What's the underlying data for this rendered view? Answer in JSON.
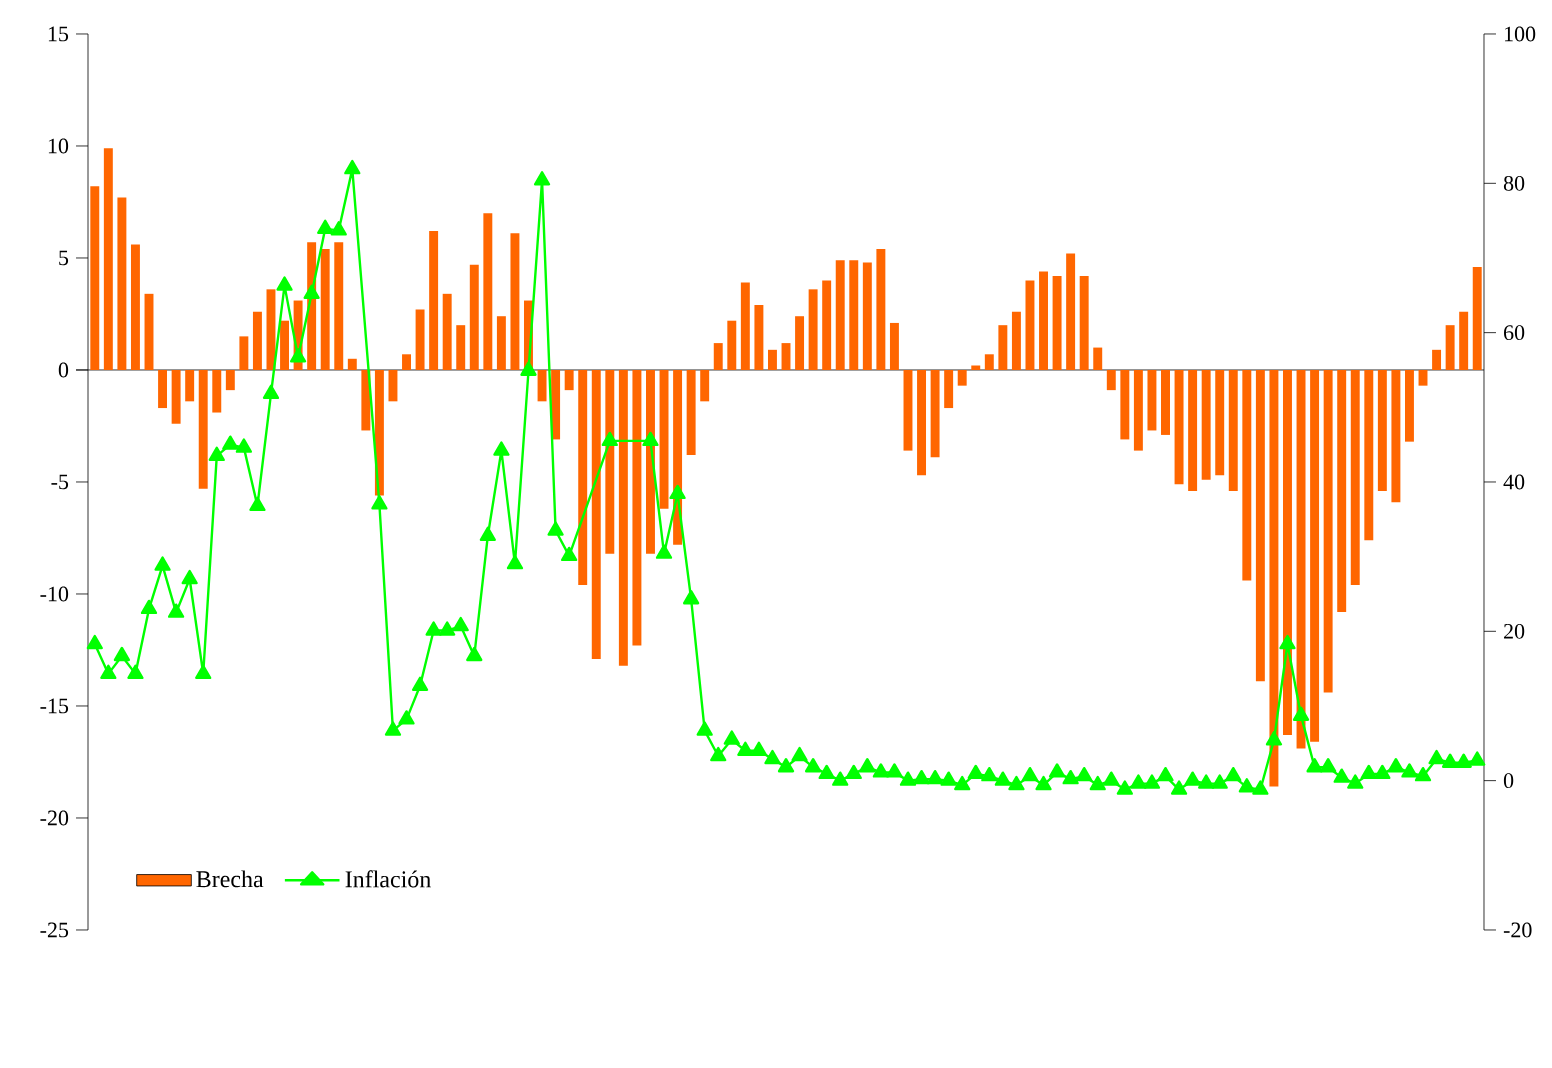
{
  "chart_data": {
    "type": "bar",
    "categories": [
      null,
      null,
      null,
      null,
      null,
      null,
      null,
      null,
      null,
      null,
      null,
      null,
      null,
      null,
      null,
      null,
      null,
      null,
      null,
      null,
      null,
      null,
      null,
      null,
      null,
      null,
      null,
      null,
      null,
      null,
      null,
      null,
      null,
      null,
      null,
      null,
      null,
      null,
      null,
      null,
      null,
      null,
      null,
      null,
      null,
      null,
      null,
      null,
      null,
      null,
      null,
      null,
      null,
      null,
      null,
      null,
      null,
      null,
      null,
      null,
      null,
      null,
      null,
      null,
      null,
      null,
      null,
      null,
      null,
      null,
      null,
      null,
      null,
      null,
      null,
      null,
      null,
      null,
      null,
      null,
      null,
      null,
      null,
      null,
      null,
      null,
      null,
      null,
      null,
      null,
      null,
      null,
      null,
      null,
      null,
      null,
      null,
      null,
      null,
      null,
      null,
      null,
      null
    ],
    "series": [
      {
        "name": "Brecha",
        "color": "#ff6600",
        "values": [
          8.2,
          9.9,
          7.7,
          5.6,
          3.4,
          -1.7,
          -2.4,
          -1.4,
          -5.3,
          -1.9,
          -0.9,
          1.5,
          2.6,
          3.6,
          2.2,
          3.1,
          5.7,
          5.4,
          5.7,
          0.5,
          -2.7,
          -5.6,
          -1.4,
          0.7,
          2.7,
          6.2,
          3.4,
          2.0,
          4.7,
          7.0,
          2.4,
          6.1,
          3.1,
          -1.4,
          -3.1,
          -0.9,
          -9.6,
          -12.9,
          -8.2,
          -13.2,
          -12.3,
          -8.2,
          -6.2,
          -7.8,
          -3.8,
          -1.4,
          1.2,
          2.2,
          3.9,
          2.9,
          0.9,
          1.2,
          2.4,
          3.6,
          4.0,
          4.9,
          4.9,
          4.8,
          5.4,
          2.1,
          -3.6,
          -4.7,
          -3.9,
          -1.7,
          -0.7,
          0.2,
          0.7,
          2.0,
          2.6,
          4.0,
          4.4,
          4.2,
          5.2,
          4.2,
          1.0,
          -0.9,
          -3.1,
          -3.6,
          -2.7,
          -2.9,
          -5.1,
          -5.4,
          -4.9,
          -4.7,
          -5.4,
          -9.4,
          -13.9,
          -18.6,
          -16.3,
          -16.9,
          -16.6,
          -14.4,
          -10.8,
          -9.6,
          -7.6,
          -5.4,
          -5.9,
          -3.2,
          -0.7,
          0.9,
          2.0,
          2.6,
          4.6
        ]
      },
      {
        "name": "Inflación",
        "type": "line",
        "axis": "y2",
        "color": "#00ff00",
        "marker": "triangle",
        "values": [
          18.3,
          14.3,
          16.7,
          14.3,
          23,
          28.8,
          22.5,
          27,
          14.3,
          43.5,
          45,
          44.6,
          36.8,
          51.8,
          66.3,
          56.7,
          65.2,
          73.9,
          73.7,
          81.9,
          null,
          37,
          6.7,
          8.2,
          12.7,
          20.1,
          20.1,
          20.7,
          16.7,
          32.8,
          44.2,
          29,
          54.9,
          80.4,
          33.5,
          30.1,
          null,
          null,
          45.5,
          null,
          null,
          45.5,
          30.4,
          38.4,
          24.3,
          6.7,
          3.3,
          5.5,
          4,
          4,
          2.9,
          1.8,
          3.3,
          1.8,
          0.9,
          0,
          0.9,
          1.8,
          1.1,
          1.1,
          0,
          0.2,
          0.2,
          0,
          -0.6,
          0.9,
          0.6,
          0,
          -0.6,
          0.6,
          -0.6,
          1.1,
          0.2,
          0.6,
          -0.6,
          0,
          -1.2,
          -0.4,
          -0.4,
          0.6,
          -1.2,
          0,
          -0.4,
          -0.4,
          0.6,
          -0.9,
          -1.2,
          5.4,
          18.3,
          8.7,
          1.8,
          1.8,
          0.4,
          -0.4,
          0.9,
          0.9,
          1.8,
          1.1,
          0.6,
          2.9,
          2.4,
          2.4,
          2.7
        ]
      }
    ],
    "ylim": [
      -25,
      15
    ],
    "yticks": [
      -25,
      -20,
      -15,
      -10,
      -5,
      0,
      5,
      10,
      15
    ],
    "y2lim": [
      -20,
      100
    ],
    "y2ticks": [
      -20,
      0,
      20,
      40,
      60,
      80,
      100
    ],
    "legend": "bottom left"
  }
}
